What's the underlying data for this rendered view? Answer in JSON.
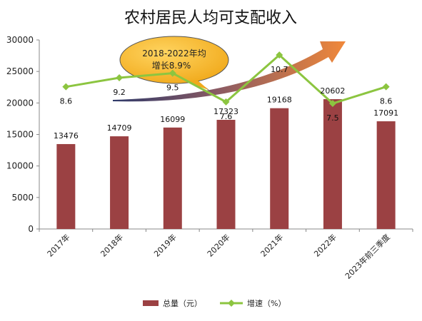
{
  "chart_data": {
    "type": "bar",
    "title": "农村居民人均可支配收入",
    "categories": [
      "2017年",
      "2018年",
      "2019年",
      "2020年",
      "2021年",
      "2022年",
      "2023年前三季度"
    ],
    "ylim": [
      0,
      30000
    ],
    "yticks": [
      0,
      5000,
      10000,
      15000,
      20000,
      25000,
      30000
    ],
    "series": [
      {
        "name": "总量（元）",
        "type": "bar",
        "color": "#9b4143",
        "values": [
          13476,
          14709,
          16099,
          17323,
          19168,
          20602,
          17091
        ]
      },
      {
        "name": "增速（%）",
        "type": "line",
        "color": "#8cc540",
        "values": [
          8.6,
          9.2,
          9.5,
          7.6,
          10.7,
          7.5,
          8.6
        ]
      }
    ],
    "annotation": {
      "line1": "2018-2022年均",
      "line2": "增长8.9%"
    },
    "legend_position": "bottom",
    "grid": false
  }
}
